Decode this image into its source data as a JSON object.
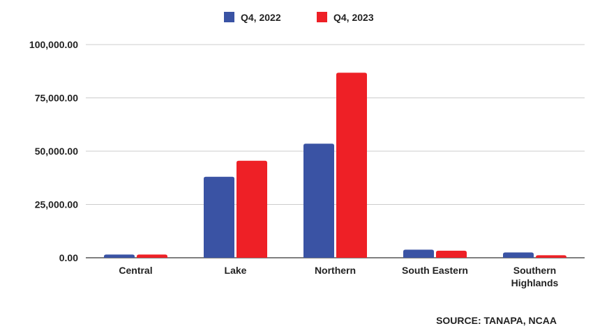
{
  "chart_data": {
    "type": "bar",
    "categories": [
      "Central",
      "Lake",
      "Northern",
      "South Eastern",
      "Southern Highlands"
    ],
    "category_lines": [
      [
        "Central"
      ],
      [
        "Lake"
      ],
      [
        "Northern"
      ],
      [
        "South Eastern"
      ],
      [
        "Southern",
        "Highlands"
      ]
    ],
    "series": [
      {
        "name": "Q4, 2022",
        "color": "#3a53a4",
        "values": [
          1500,
          38000,
          53500,
          3800,
          2500
        ]
      },
      {
        "name": "Q4, 2023",
        "color": "#ee2026",
        "values": [
          1500,
          45500,
          86800,
          3300,
          1200
        ]
      }
    ],
    "ylim": [
      0,
      100000
    ],
    "yticks": [
      0,
      25000,
      50000,
      75000,
      100000
    ],
    "ytick_labels": [
      "0.00",
      "25,000.00",
      "50,000.00",
      "75,000.00",
      "100,000.00"
    ],
    "grid": true,
    "legend_position": "top-center",
    "source": "SOURCE: TANAPA, NCAA"
  }
}
